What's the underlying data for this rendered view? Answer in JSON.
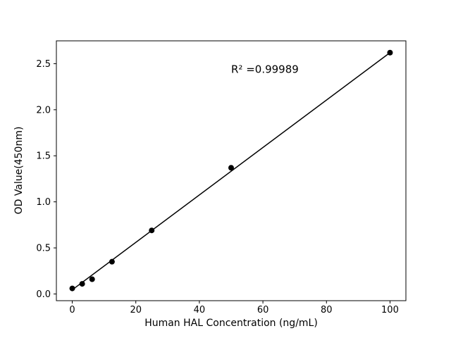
{
  "chart_data": {
    "type": "scatter",
    "title": "",
    "xlabel": "Human HAL Concentration (ng/mL)",
    "ylabel": "OD Value(450nm)",
    "x": [
      0,
      3.125,
      6.25,
      12.5,
      25,
      50,
      100
    ],
    "y": [
      0.06,
      0.11,
      0.16,
      0.35,
      0.69,
      1.37,
      2.62
    ],
    "fit_line": {
      "x1": 0,
      "y1": 0.045,
      "x2": 100,
      "y2": 2.62
    },
    "annotation": {
      "text": "R² =0.99989",
      "x": 50,
      "y": 2.4
    },
    "xlim": [
      -5,
      105
    ],
    "ylim": [
      -0.073,
      2.748
    ],
    "xticks": [
      0,
      20,
      40,
      60,
      80,
      100
    ],
    "xtick_labels": [
      "0",
      "20",
      "40",
      "60",
      "80",
      "100"
    ],
    "yticks": [
      0.0,
      0.5,
      1.0,
      1.5,
      2.0,
      2.5
    ],
    "ytick_labels": [
      "0.0",
      "0.5",
      "1.0",
      "1.5",
      "2.0",
      "2.5"
    ],
    "marker_color": "#000000",
    "line_color": "#000000",
    "grid": false,
    "legend": "none"
  }
}
